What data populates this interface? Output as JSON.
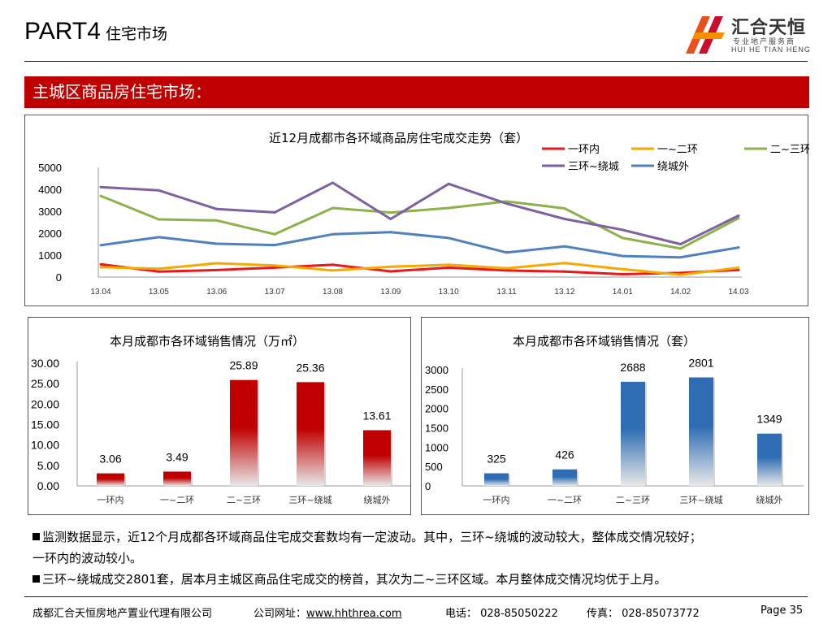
{
  "header": {
    "part": "PART4",
    "subtitle": "住宅市场"
  },
  "logo": {
    "name_cn": "汇合天恒",
    "tagline": "专业地产服务商",
    "name_en": "HUI HE TIAN HENG"
  },
  "banner": {
    "title": "主城区商品房住宅市场："
  },
  "colors": {
    "accent_red": "#c00000",
    "line_red": "#e41a1c",
    "line_orange": "#f5a800",
    "line_green": "#8cb24a",
    "line_purple": "#7f60a0",
    "line_blue": "#4f81bd",
    "bar_red": "#c00000",
    "bar_blue": "#2e6db3"
  },
  "chart_data": [
    {
      "type": "line",
      "title": "近12月成都市各环域商品房住宅成交走势（套）",
      "x": [
        "13.04",
        "13.05",
        "13.06",
        "13.07",
        "13.08",
        "13.09",
        "13.10",
        "13.11",
        "13.12",
        "14.01",
        "14.02",
        "14.03"
      ],
      "ylim": [
        0,
        5000
      ],
      "yticks": [
        "5000",
        "4000",
        "3000",
        "2000",
        "1000",
        "0"
      ],
      "legend": "top-right",
      "series": [
        {
          "name": "一环内",
          "color": "#e41a1c",
          "values": [
            580,
            250,
            320,
            430,
            560,
            260,
            430,
            300,
            250,
            130,
            190,
            325
          ]
        },
        {
          "name": "一~二环",
          "color": "#f5a800",
          "values": [
            450,
            380,
            630,
            530,
            300,
            470,
            560,
            400,
            640,
            360,
            100,
            426
          ]
        },
        {
          "name": "二~三环",
          "color": "#8cb24a",
          "values": [
            3700,
            2630,
            2580,
            1950,
            3150,
            2940,
            3150,
            3450,
            3130,
            1780,
            1300,
            2688
          ]
        },
        {
          "name": "三环~绕城",
          "color": "#7f60a0",
          "values": [
            4100,
            3950,
            3100,
            2950,
            4300,
            2650,
            4250,
            3350,
            2650,
            2150,
            1500,
            2801
          ]
        },
        {
          "name": "绕城外",
          "color": "#4f81bd",
          "values": [
            1450,
            1820,
            1520,
            1460,
            1950,
            2050,
            1780,
            1120,
            1400,
            960,
            900,
            1349
          ]
        }
      ]
    },
    {
      "type": "bar",
      "title": "本月成都市各环域销售情况（万㎡）",
      "categories": [
        "一环内",
        "一~二环",
        "二~三环",
        "三环~绕城",
        "绕城外"
      ],
      "values": [
        3.06,
        3.49,
        25.89,
        25.36,
        13.61
      ],
      "labels": [
        "3.06",
        "3.49",
        "25.89",
        "25.36",
        "13.61"
      ],
      "ylim": [
        0,
        30
      ],
      "yticks": [
        "30.00",
        "25.00",
        "20.00",
        "15.00",
        "10.00",
        "5.00",
        "0.00"
      ],
      "color": "#c00000"
    },
    {
      "type": "bar",
      "title": "本月成都市各环域销售情况（套）",
      "categories": [
        "一环内",
        "一~二环",
        "二~三环",
        "三环~绕城",
        "绕城外"
      ],
      "values": [
        325,
        426,
        2688,
        2801,
        1349
      ],
      "labels": [
        "325",
        "426",
        "2688",
        "2801",
        "1349"
      ],
      "ylim": [
        0,
        3000
      ],
      "yticks": [
        "3000",
        "2500",
        "2000",
        "1500",
        "1000",
        "500",
        "0"
      ],
      "color": "#2e6db3"
    }
  ],
  "notes": {
    "line1": "监测数据显示，近12个月成都各环域商品住宅成交套数均有一定波动。其中，三环~绕城的波动较大，整体成交情况较好；",
    "line2": "一环内的波动较小。",
    "line3": "三环~绕城成交2801套，居本月主城区商品住宅成交的榜首，其次为二~三环区域。本月整体成交情况均优于上月。"
  },
  "footer": {
    "company": "成都汇合天恒房地产置业代理有限公司",
    "website_label": "公司网址：",
    "website": "www.hhthrea.com",
    "phone": "电话： 028-85050222",
    "fax": "传真： 028-85073772",
    "page": "Page 35"
  }
}
